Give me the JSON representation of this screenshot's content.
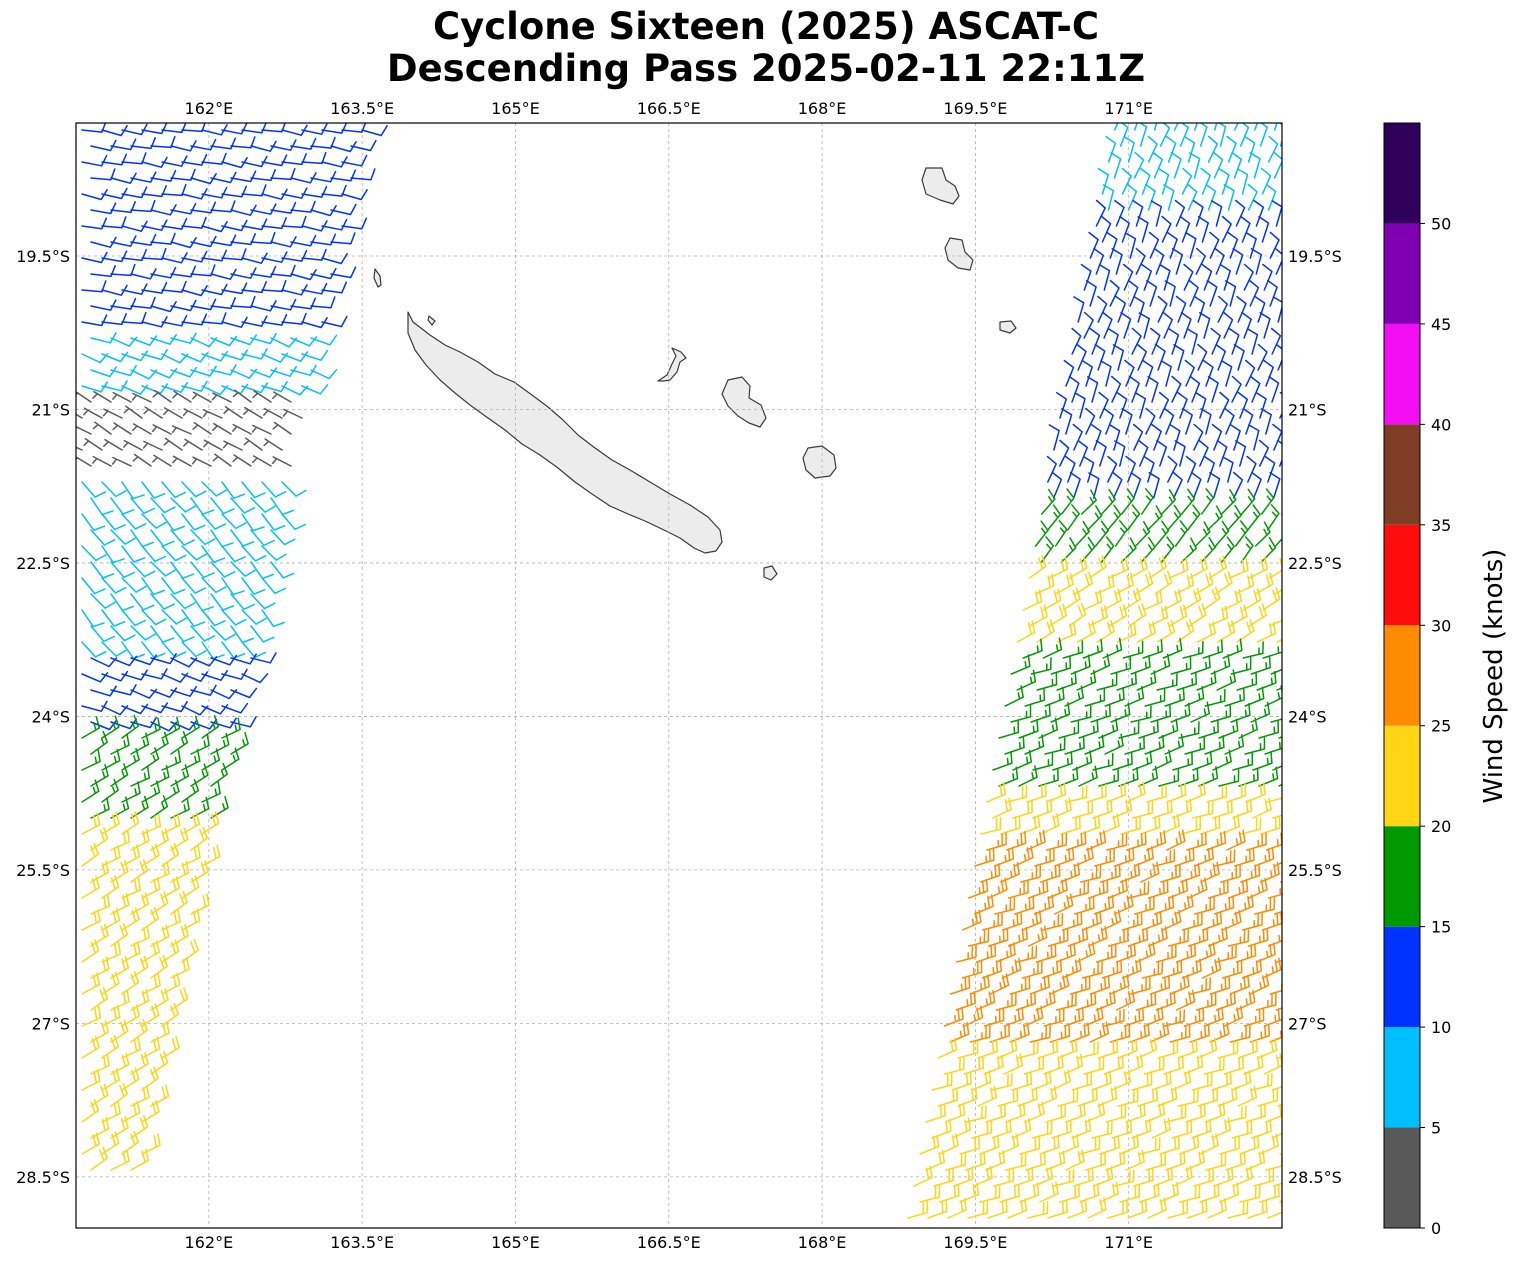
{
  "title": {
    "line1": "Cyclone Sixteen (2025) ASCAT-C",
    "line2": "Descending Pass 2025-02-11 22:11Z"
  },
  "map": {
    "lon_range": [
      160.7,
      172.5
    ],
    "lat_range": [
      -29.0,
      -18.2
    ],
    "lon_ticks": [
      {
        "value": 162.0,
        "label": "162°E"
      },
      {
        "value": 163.5,
        "label": "163.5°E"
      },
      {
        "value": 165.0,
        "label": "165°E"
      },
      {
        "value": 166.5,
        "label": "166.5°E"
      },
      {
        "value": 168.0,
        "label": "168°E"
      },
      {
        "value": 169.5,
        "label": "169.5°E"
      },
      {
        "value": 171.0,
        "label": "171°E"
      }
    ],
    "lat_ticks": [
      {
        "value": -19.5,
        "label": "19.5°S"
      },
      {
        "value": -21.0,
        "label": "21°S"
      },
      {
        "value": -22.5,
        "label": "22.5°S"
      },
      {
        "value": -24.0,
        "label": "24°S"
      },
      {
        "value": -25.5,
        "label": "25.5°S"
      },
      {
        "value": -27.0,
        "label": "27°S"
      },
      {
        "value": -28.5,
        "label": "28.5°S"
      }
    ],
    "grid": true,
    "coastline_color": "#3a3a3a",
    "land_fill": "#ececec"
  },
  "colorbar": {
    "label": "Wind Speed (knots)",
    "ticks": [
      "0",
      "5",
      "10",
      "15",
      "20",
      "25",
      "30",
      "35",
      "40",
      "45",
      "50"
    ],
    "bins": [
      {
        "min": 0,
        "max": 5,
        "color": "#595959"
      },
      {
        "min": 5,
        "max": 10,
        "color": "#00bfff"
      },
      {
        "min": 10,
        "max": 15,
        "color": "#0033ff"
      },
      {
        "min": 15,
        "max": 20,
        "color": "#009900"
      },
      {
        "min": 20,
        "max": 25,
        "color": "#ffd514"
      },
      {
        "min": 25,
        "max": 30,
        "color": "#ff8c00"
      },
      {
        "min": 30,
        "max": 35,
        "color": "#ff0d0d"
      },
      {
        "min": 35,
        "max": 40,
        "color": "#803d26"
      },
      {
        "min": 40,
        "max": 45,
        "color": "#f20df2"
      },
      {
        "min": 45,
        "max": 50,
        "color": "#8000b3"
      },
      {
        "min": 50,
        "max": 55,
        "color": "#2e0059"
      }
    ]
  },
  "wind_regions": {
    "west_swath": [
      {
        "lat_top": -18.2,
        "lat_bottom": -20.3,
        "speed_kt": 12,
        "dir_deg": 100
      },
      {
        "lat_top": -20.3,
        "lat_bottom": -20.9,
        "speed_kt": 8,
        "dir_deg": 110
      },
      {
        "lat_top": -20.9,
        "lat_bottom": -21.7,
        "speed_kt": 3,
        "dir_deg": 300
      },
      {
        "lat_top": -21.7,
        "lat_bottom": -23.4,
        "speed_kt": 8,
        "dir_deg": 140
      },
      {
        "lat_top": -23.4,
        "lat_bottom": -24.2,
        "speed_kt": 12,
        "dir_deg": 110
      },
      {
        "lat_top": -24.2,
        "lat_bottom": -25.0,
        "speed_kt": 17,
        "dir_deg": 60
      },
      {
        "lat_top": -25.0,
        "lat_bottom": -28.6,
        "speed_kt": 22,
        "dir_deg": 60
      }
    ],
    "east_swath": [
      {
        "lat_top": -18.2,
        "lat_bottom": -19.2,
        "speed_kt": 8,
        "dir_deg": 20
      },
      {
        "lat_top": -19.2,
        "lat_bottom": -22.0,
        "speed_kt": 12,
        "dir_deg": 20
      },
      {
        "lat_top": -22.0,
        "lat_bottom": -22.6,
        "speed_kt": 17,
        "dir_deg": 40
      },
      {
        "lat_top": -22.6,
        "lat_bottom": -23.3,
        "speed_kt": 22,
        "dir_deg": 60
      },
      {
        "lat_top": -23.3,
        "lat_bottom": -24.7,
        "speed_kt": 17,
        "dir_deg": 70
      },
      {
        "lat_top": -24.7,
        "lat_bottom": -25.2,
        "speed_kt": 22,
        "dir_deg": 70
      },
      {
        "lat_top": -25.2,
        "lat_bottom": -27.3,
        "speed_kt": 27,
        "dir_deg": 70
      },
      {
        "lat_top": -27.3,
        "lat_bottom": -29.0,
        "speed_kt": 22,
        "dir_deg": 70
      }
    ]
  }
}
